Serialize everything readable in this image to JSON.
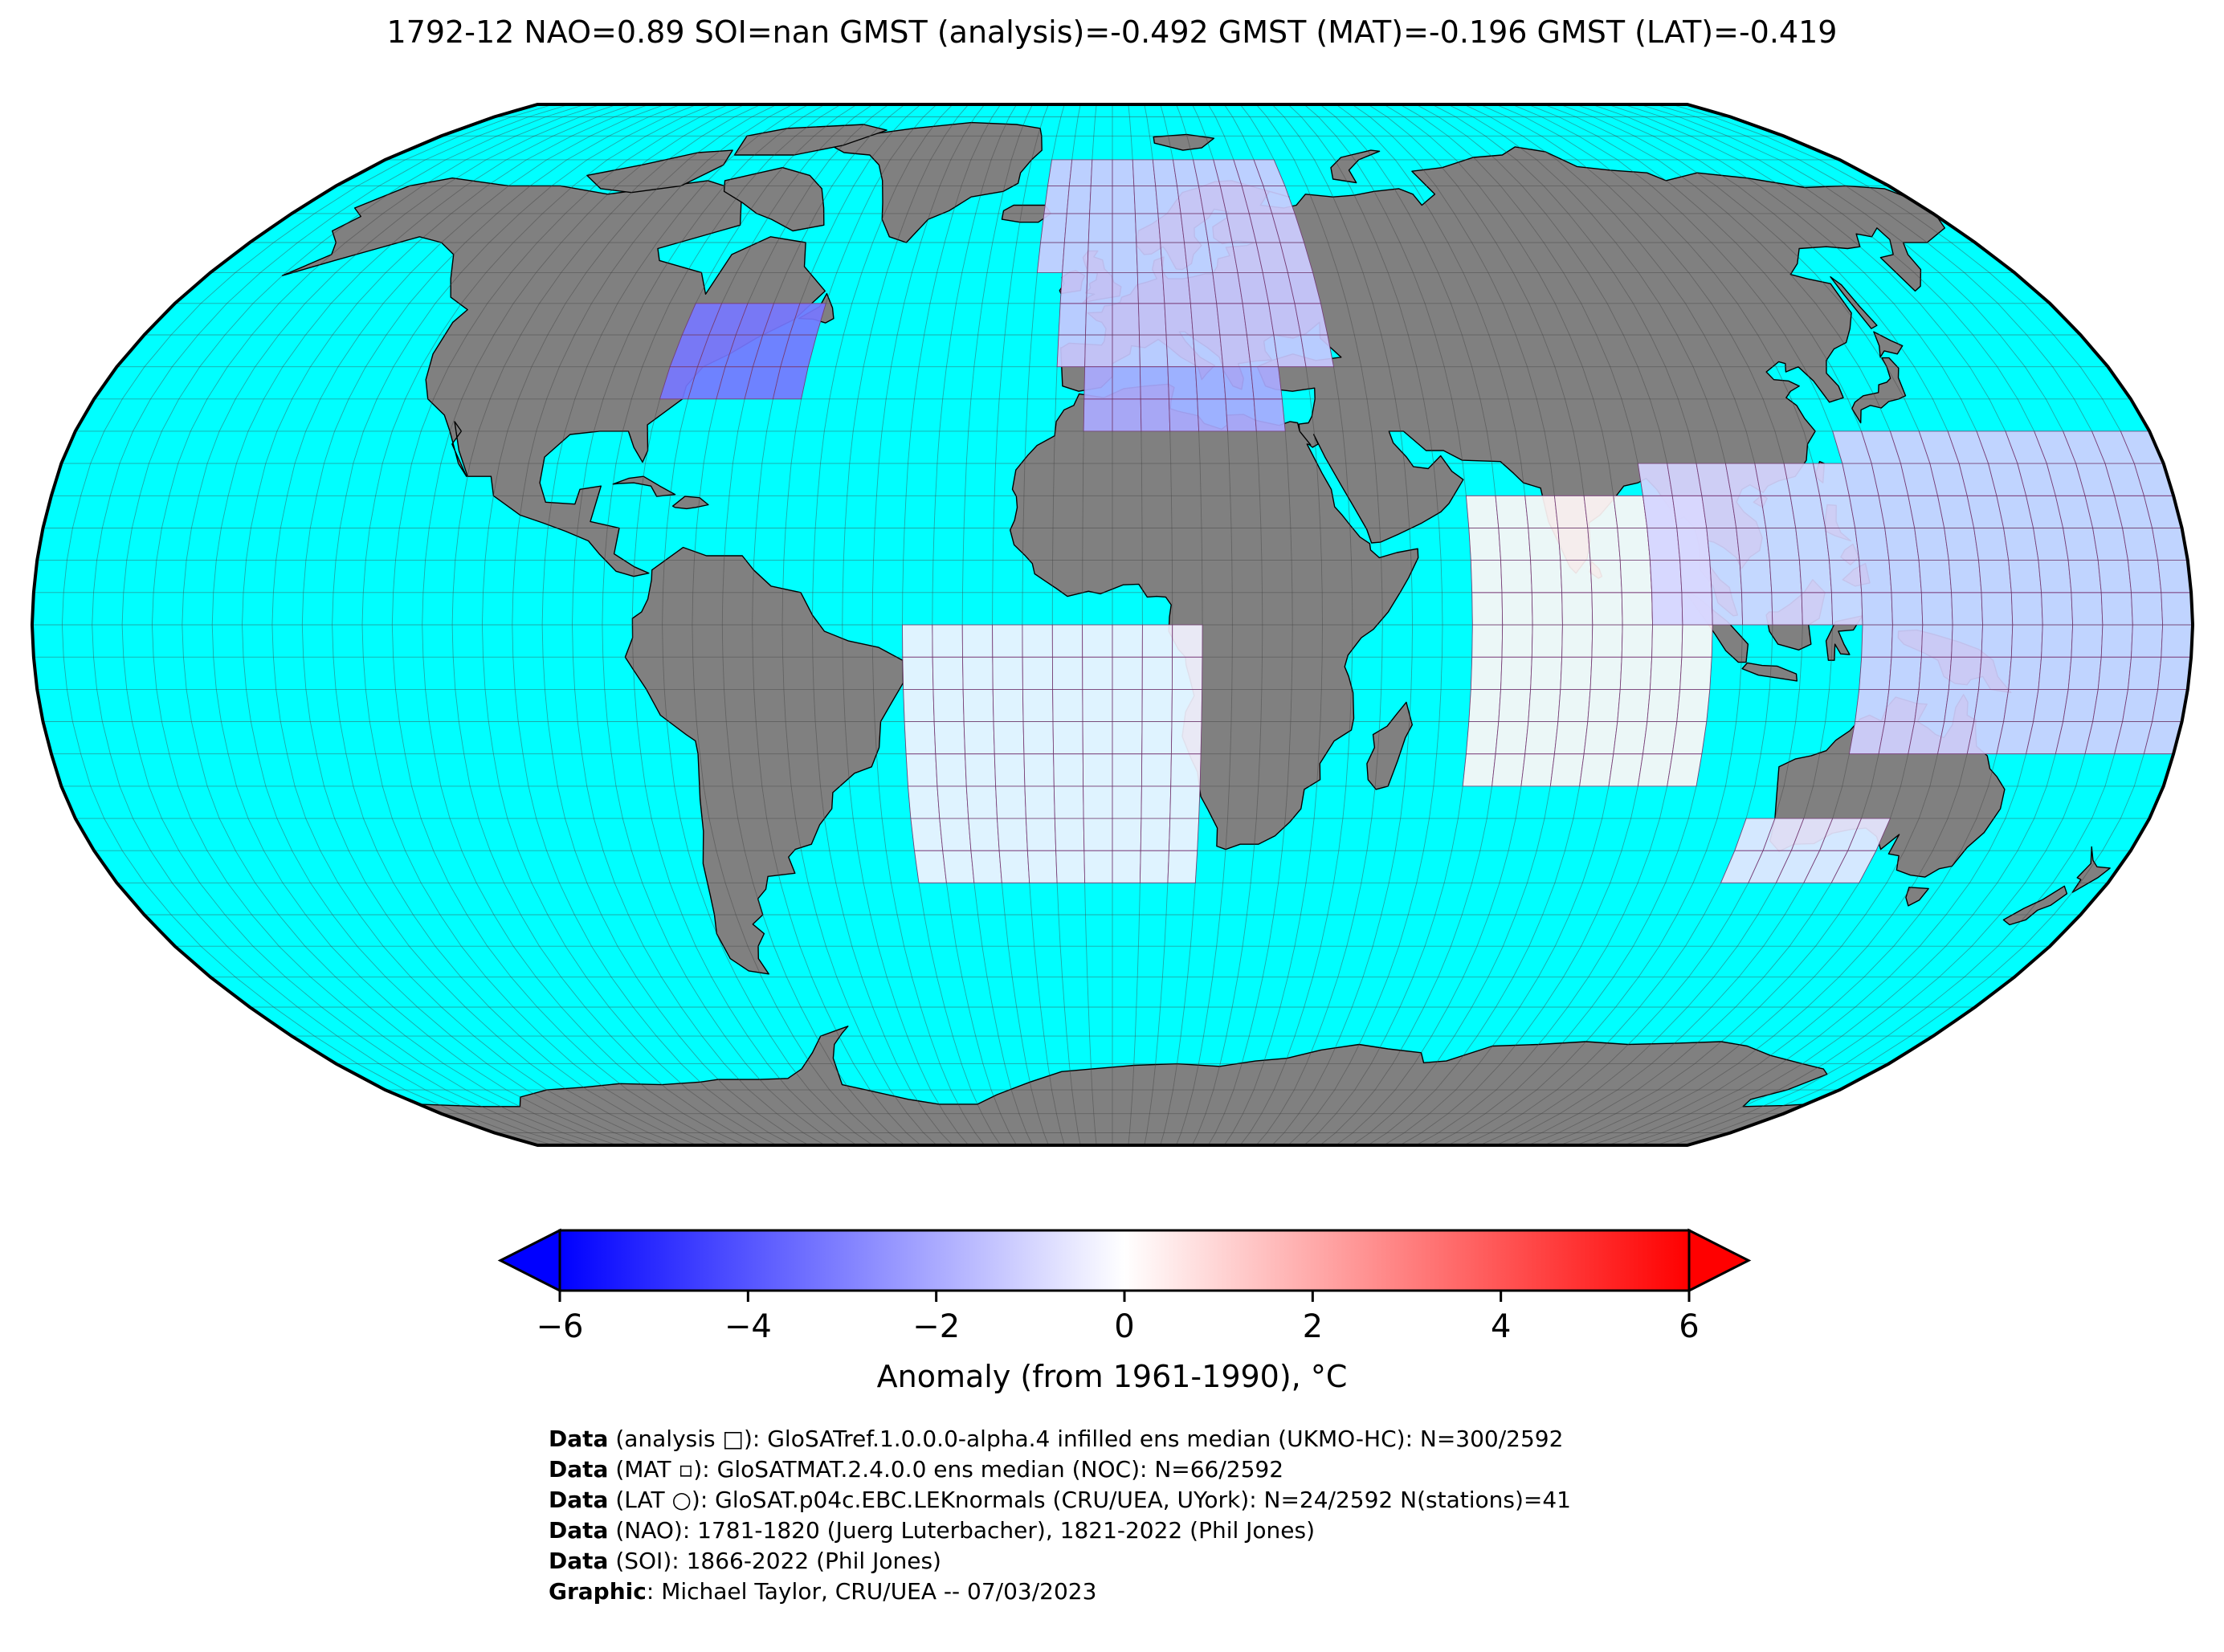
{
  "title": "1792-12 NAO=0.89 SOI=nan GMST (analysis)=-0.492 GMST (MAT)=-0.196 GMST (LAT)=-0.419",
  "colors": {
    "ocean": "#00ffff",
    "land": "#808080",
    "coast": "#000000",
    "grid_major": "#404040",
    "grid_cell": "#a040a0",
    "cold": "#0000ff",
    "neutral": "#ffffff",
    "warm": "#ff0000"
  },
  "colorbar": {
    "label": "Anomaly (from 1961-1990), °C",
    "min": -6,
    "max": 6,
    "ticks": [
      "−6",
      "−4",
      "−2",
      "0",
      "2",
      "4",
      "6"
    ],
    "tick_values": [
      -6,
      -4,
      -2,
      0,
      2,
      4,
      6
    ],
    "extend": "both",
    "colormap": "bwr"
  },
  "grid_cells": [
    {
      "region": "north-america-east",
      "lon": [
        -80,
        -55
      ],
      "lat": [
        35,
        50
      ],
      "anomaly": -3.2
    },
    {
      "region": "europe-north",
      "lon": [
        -15,
        40
      ],
      "lat": [
        55,
        72
      ],
      "anomaly": -1.2
    },
    {
      "region": "europe-central",
      "lon": [
        -10,
        40
      ],
      "lat": [
        40,
        55
      ],
      "anomaly": -1.3
    },
    {
      "region": "mediterranean",
      "lon": [
        -5,
        30
      ],
      "lat": [
        30,
        40
      ],
      "anomaly": -2.0
    },
    {
      "region": "south-atlantic",
      "lon": [
        -35,
        15
      ],
      "lat": [
        -40,
        0
      ],
      "anomaly": -0.3
    },
    {
      "region": "indian-ocean",
      "lon": [
        60,
        100
      ],
      "lat": [
        -25,
        20
      ],
      "anomaly": 0.2
    },
    {
      "region": "south-east-asia",
      "lon": [
        90,
        125
      ],
      "lat": [
        0,
        25
      ],
      "anomaly": -1.0
    },
    {
      "region": "west-pacific",
      "lon": [
        125,
        180
      ],
      "lat": [
        -20,
        30
      ],
      "anomaly": -1.1
    },
    {
      "region": "australia-south",
      "lon": [
        110,
        135
      ],
      "lat": [
        -40,
        -30
      ],
      "anomaly": -0.6
    }
  ],
  "credits": [
    {
      "bold": "Data",
      "text": " (analysis □): GloSATref.1.0.0.0-alpha.4 infilled ens median (UKMO-HC): N=300/2592"
    },
    {
      "bold": "Data",
      "text": " (MAT ▫): GloSATMAT.2.4.0.0 ens median (NOC): N=66/2592"
    },
    {
      "bold": "Data",
      "text": " (LAT ○): GloSAT.p04c.EBC.LEKnormals (CRU/UEA, UYork): N=24/2592 N(stations)=41"
    },
    {
      "bold": "Data",
      "text": " (NAO): 1781-1820 (Juerg Luterbacher), 1821-2022 (Phil Jones)"
    },
    {
      "bold": "Data",
      "text": " (SOI): 1866-2022 (Phil Jones)"
    },
    {
      "bold": "Graphic",
      "text": ": Michael Taylor, CRU/UEA -- 07/03/2023"
    }
  ]
}
